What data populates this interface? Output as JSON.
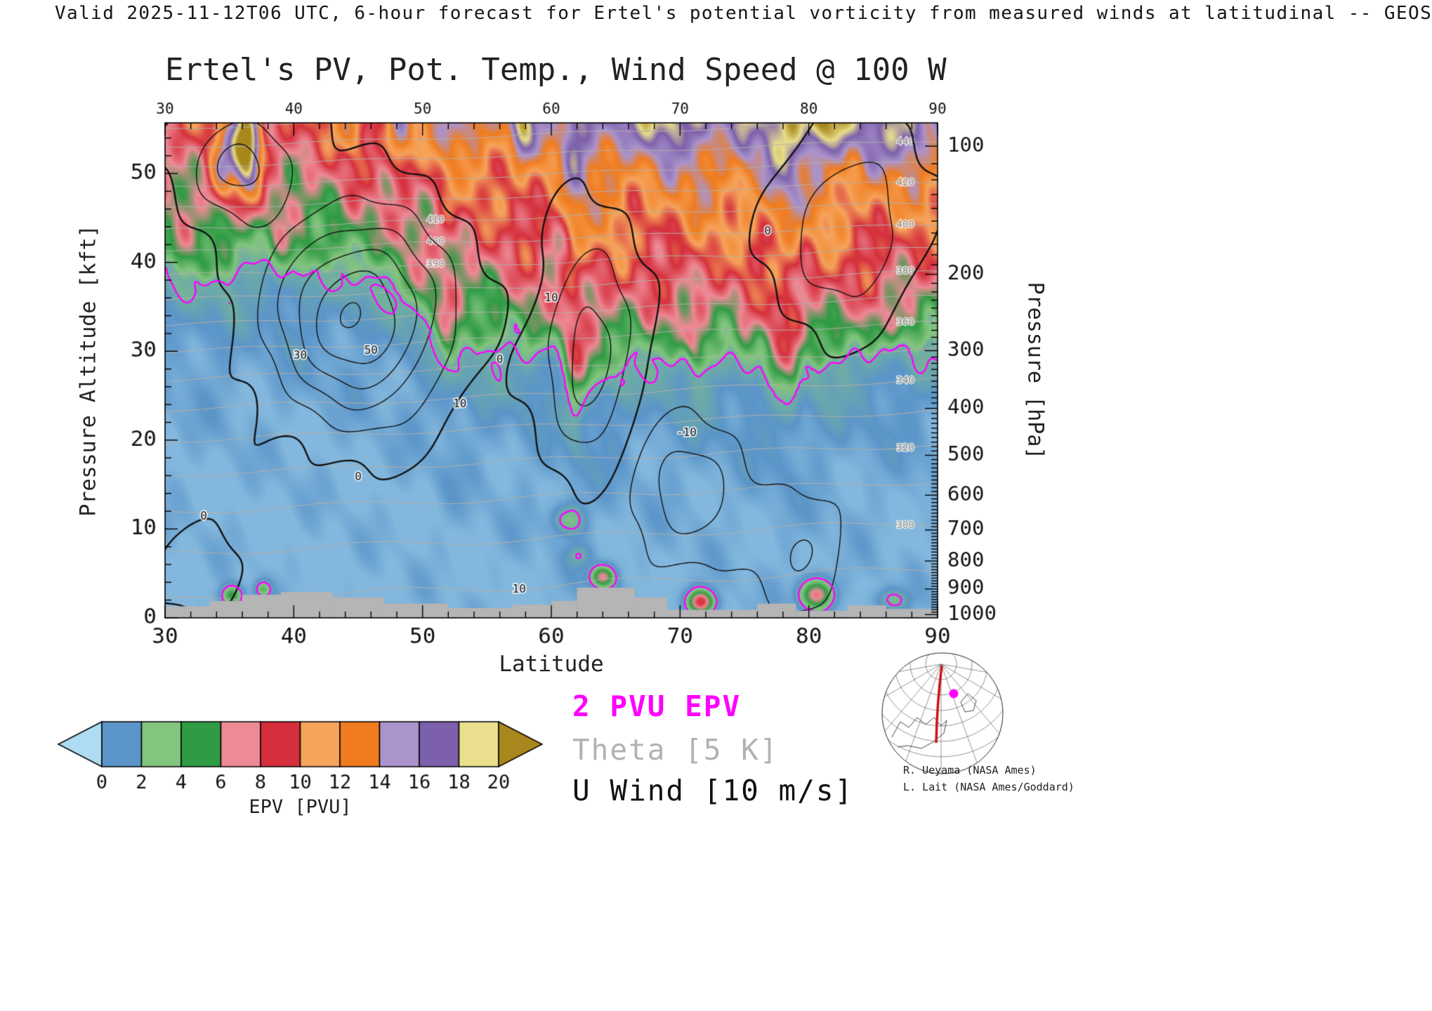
{
  "header": {
    "text": "Valid 2025-11-12T06 UTC, 6-hour forecast for Ertel's potential vorticity from measured winds at latitudinal -- GEOS"
  },
  "credits": {
    "line1": "R. Ueyama (NASA Ames)",
    "line2": "L. Lait (NASA Ames/Goddard)"
  },
  "chart_data": {
    "type": "heatmap",
    "title": "Ertel's PV, Pot. Temp., Wind Speed @ 100 W",
    "x_axis": {
      "label": "Latitude",
      "min": 30,
      "max": 90,
      "ticks": [
        30,
        40,
        50,
        60,
        70,
        80,
        90
      ],
      "minor_step": 2
    },
    "y_axis_left": {
      "label": "Pressure Altitude [kft]",
      "min": 0,
      "max": 55.7,
      "ticks": [
        0,
        10,
        20,
        30,
        40,
        50
      ],
      "minor_step": 2
    },
    "y_axis_right": {
      "label": "Pressure [hPa]",
      "ticks": [
        100,
        200,
        300,
        400,
        500,
        600,
        700,
        800,
        900,
        1000
      ]
    },
    "colorbar": {
      "label": "EPV [PVU]",
      "ticks": [
        0,
        2,
        4,
        6,
        8,
        10,
        12,
        14,
        16,
        18,
        20
      ],
      "under_color": "#aedcf2",
      "segment_colors": [
        "#5b95c9",
        "#84c57e",
        "#2f9b44",
        "#ee8a96",
        "#d52f3c",
        "#f6a45c",
        "#f07c1f",
        "#ab94cc",
        "#7c60ab",
        "#e9df8d"
      ],
      "over_color": "#a8871c"
    },
    "overlays": [
      {
        "label": "2 PVU EPV",
        "color": "#ff00ff",
        "level_pvu": 2
      },
      {
        "label": "Theta [5 K]",
        "color": "#b5b0aa",
        "interval_K": 5
      },
      {
        "label": "U Wind [10 m/s]",
        "color": "#111111",
        "interval_ms": 10
      }
    ],
    "tropopause_2pvu_kft": {
      "lat": [
        30,
        32,
        34,
        36,
        38,
        40,
        42,
        44,
        46,
        48,
        50,
        52,
        54,
        56,
        58,
        60,
        62,
        64,
        66,
        68,
        70,
        72,
        74,
        76,
        78,
        80,
        82,
        84,
        86,
        88,
        90
      ],
      "kft": [
        39,
        38.2,
        37.3,
        39.6,
        40,
        38.2,
        39.4,
        38,
        38.6,
        37.2,
        33.5,
        28.8,
        30,
        30.6,
        29.4,
        30.4,
        23.5,
        26.6,
        29,
        29.6,
        28.4,
        28,
        29.4,
        27.8,
        24.4,
        27.6,
        29,
        29.6,
        30,
        30.4,
        30.4
      ]
    },
    "pv_anomalies": [
      {
        "lat": 61.3,
        "kft": 11,
        "amp": 2.6,
        "rlat": 1.2,
        "rz": 1.7
      },
      {
        "lat": 62.2,
        "kft": 7,
        "amp": 1.6,
        "rlat": 0.9,
        "rz": 1.2
      },
      {
        "lat": 64.0,
        "kft": 4.6,
        "amp": 7.0,
        "rlat": 0.9,
        "rz": 1.2
      },
      {
        "lat": 71.6,
        "kft": 1.8,
        "amp": 9.0,
        "rlat": 1.0,
        "rz": 1.3
      },
      {
        "lat": 80.6,
        "kft": 2.6,
        "amp": 7.5,
        "rlat": 1.2,
        "rz": 1.6
      },
      {
        "lat": 35.2,
        "kft": 2.5,
        "amp": 5.0,
        "rlat": 0.8,
        "rz": 1.1
      },
      {
        "lat": 37.6,
        "kft": 3.2,
        "amp": 3.5,
        "rlat": 0.6,
        "rz": 0.9
      },
      {
        "lat": 86.5,
        "kft": 2.0,
        "amp": 2.2,
        "rlat": 1.2,
        "rz": 1.2
      }
    ],
    "strat_streaks": [
      {
        "lat": 36.3,
        "kft": 53,
        "amp": 16,
        "rlat": 1.1,
        "rz": 5
      },
      {
        "lat": 34.4,
        "kft": 50,
        "amp": 6,
        "rlat": 0.9,
        "rz": 4
      },
      {
        "lat": 48.2,
        "kft": 54,
        "amp": 6,
        "rlat": 1.0,
        "rz": 4
      },
      {
        "lat": 57.6,
        "kft": 55,
        "amp": 6,
        "rlat": 0.9,
        "rz": 3.5
      },
      {
        "lat": 44.5,
        "kft": 55,
        "amp": 4,
        "rlat": 1.2,
        "rz": 3
      },
      {
        "lat": 53.5,
        "kft": 55.5,
        "amp": 3,
        "rlat": 1.5,
        "rz": 3
      },
      {
        "lat": 81,
        "kft": 55.5,
        "amp": 5,
        "rlat": 2.0,
        "rz": 3
      },
      {
        "lat": 87.5,
        "kft": 54.5,
        "amp": 4,
        "rlat": 1.6,
        "rz": 3
      },
      {
        "lat": 69,
        "kft": 56,
        "amp": 3,
        "rlat": 2.5,
        "rz": 3
      }
    ],
    "wind_cells": [
      {
        "lat": 45,
        "kft": 34,
        "amp": 55,
        "rlat": 6.5,
        "rz": 11
      },
      {
        "lat": 36,
        "kft": 51,
        "amp": 28,
        "rlat": 4,
        "rz": 6
      },
      {
        "lat": 63,
        "kft": 30,
        "amp": 30,
        "rlat": 3.5,
        "rz": 12
      },
      {
        "lat": 83,
        "kft": 44,
        "amp": 24,
        "rlat": 5,
        "rz": 10
      },
      {
        "lat": 70.5,
        "kft": 14,
        "amp": -22,
        "rlat": 4.5,
        "rz": 8
      },
      {
        "lat": 79.5,
        "kft": 8,
        "amp": -16,
        "rlat": 3.5,
        "rz": 7
      },
      {
        "lat": 33,
        "kft": 6,
        "amp": 12,
        "rlat": 3,
        "rz": 5
      }
    ],
    "wind_levels": {
      "dashed": [
        -30,
        -20,
        -10
      ],
      "zero": 0,
      "solid": [
        10,
        20,
        30,
        40,
        50
      ]
    },
    "wind_labels": [
      {
        "text": "50",
        "lat": 46,
        "kft": 30
      },
      {
        "text": "30",
        "lat": 40.5,
        "kft": 29.5
      },
      {
        "text": "10",
        "lat": 52.9,
        "kft": 24
      },
      {
        "text": "0",
        "lat": 56,
        "kft": 29
      },
      {
        "text": "0",
        "lat": 45,
        "kft": 15.8
      },
      {
        "text": "10",
        "lat": 60,
        "kft": 36
      },
      {
        "text": "-10",
        "lat": 70.5,
        "kft": 20.8
      },
      {
        "text": "0",
        "lat": 76.8,
        "kft": 43.5
      },
      {
        "text": "0",
        "lat": 33,
        "kft": 11.4
      },
      {
        "text": "10",
        "lat": 57.5,
        "kft": 3.2
      }
    ],
    "theta_field": {
      "t0": 287,
      "a": 1.6,
      "b": 0.028,
      "per_lat": 0.1,
      "cross": 0.0025,
      "step": 10,
      "min": 290,
      "max": 460,
      "edge_labels": [
        300,
        320,
        340,
        360,
        380,
        400,
        420,
        440
      ],
      "edge_label_lat": 87.5,
      "inline_labels": [
        390,
        400,
        410
      ],
      "inline_label_lat": 51
    },
    "surface_profile": [
      {
        "from": 30,
        "to": 33.5,
        "kft": 1.3
      },
      {
        "from": 33.5,
        "to": 36,
        "kft": 1.9
      },
      {
        "from": 36,
        "to": 39,
        "kft": 2.6
      },
      {
        "from": 39,
        "to": 43,
        "kft": 2.9
      },
      {
        "from": 43,
        "to": 47,
        "kft": 2.3
      },
      {
        "from": 47,
        "to": 52,
        "kft": 1.6
      },
      {
        "from": 52,
        "to": 57,
        "kft": 1.1
      },
      {
        "from": 57,
        "to": 60,
        "kft": 1.5
      },
      {
        "from": 60,
        "to": 62,
        "kft": 1.9
      },
      {
        "from": 62,
        "to": 66.5,
        "kft": 3.4
      },
      {
        "from": 66.5,
        "to": 69,
        "kft": 2.3
      },
      {
        "from": 69,
        "to": 76,
        "kft": 0.9
      },
      {
        "from": 76,
        "to": 79,
        "kft": 1.6
      },
      {
        "from": 79,
        "to": 83,
        "kft": 0.8
      },
      {
        "from": 83,
        "to": 86,
        "kft": 1.4
      },
      {
        "from": 86,
        "to": 90,
        "kft": 1.0
      }
    ]
  }
}
